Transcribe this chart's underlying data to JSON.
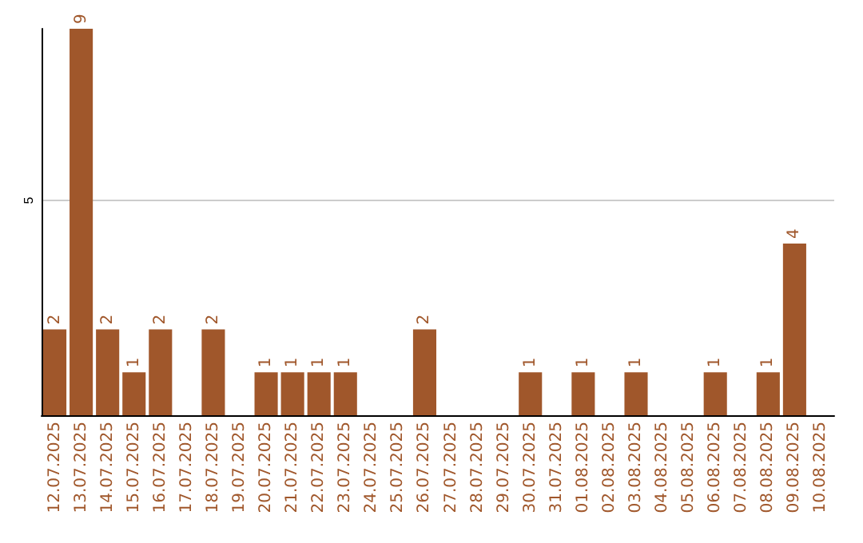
{
  "chart_data": {
    "type": "bar",
    "categories": [
      "12.07.2025",
      "13.07.2025",
      "14.07.2025",
      "15.07.2025",
      "16.07.2025",
      "17.07.2025",
      "18.07.2025",
      "19.07.2025",
      "20.07.2025",
      "21.07.2025",
      "22.07.2025",
      "23.07.2025",
      "24.07.2025",
      "25.07.2025",
      "26.07.2025",
      "27.07.2025",
      "28.07.2025",
      "29.07.2025",
      "30.07.2025",
      "31.07.2025",
      "01.08.2025",
      "02.08.2025",
      "03.08.2025",
      "04.08.2025",
      "05.08.2025",
      "06.08.2025",
      "07.08.2025",
      "08.08.2025",
      "09.08.2025",
      "10.08.2025"
    ],
    "values": [
      2,
      9,
      2,
      1,
      2,
      0,
      2,
      0,
      1,
      1,
      1,
      1,
      0,
      0,
      2,
      0,
      0,
      0,
      1,
      0,
      1,
      0,
      1,
      0,
      0,
      1,
      0,
      1,
      4,
      0
    ],
    "value_labels": [
      "2",
      "9",
      "2",
      "1",
      "2",
      null,
      "2",
      null,
      "1",
      "1",
      "1",
      "1",
      null,
      null,
      "2",
      null,
      null,
      null,
      "1",
      null,
      "1",
      null,
      "1",
      null,
      null,
      "1",
      null,
      "1",
      "4",
      null
    ],
    "color": "#a0572b",
    "ylim": [
      0,
      9
    ],
    "yticks": [
      5
    ],
    "grid": "y"
  }
}
